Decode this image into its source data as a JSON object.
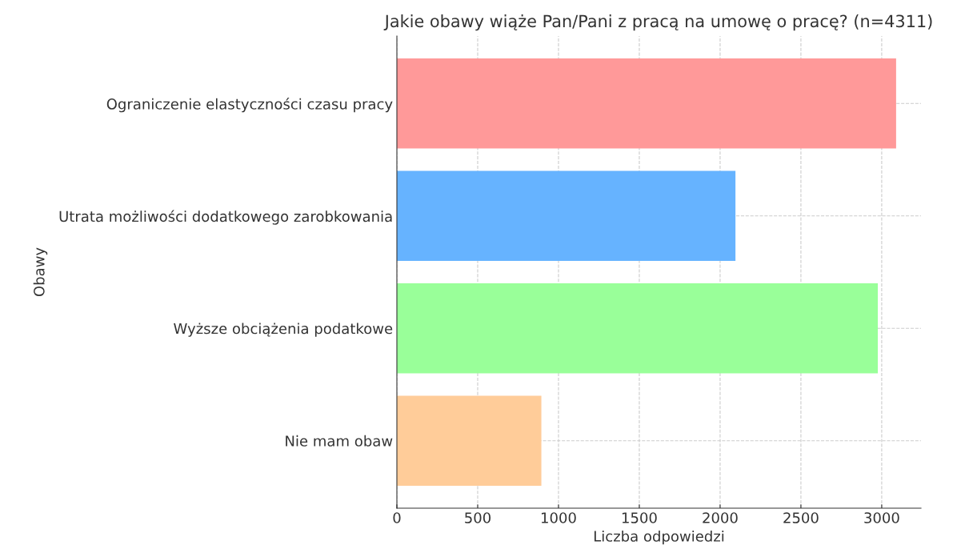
{
  "chart_data": {
    "type": "bar",
    "orientation": "horizontal",
    "title": "Jakie obawy wiąże Pan/Pani z pracą na umowę o pracę? (n=4311)",
    "xlabel": "Liczba odpowiedzi",
    "ylabel": "Obawy",
    "categories": [
      "Ograniczenie elastyczności czasu pracy",
      "Utrata możliwości dodatkowego zarobkowania",
      "Wyższe obciążenia podatkowe",
      "Nie mam obaw"
    ],
    "values": [
      3089,
      2095,
      2976,
      894
    ],
    "colors": [
      "#ff9999",
      "#66b3ff",
      "#99ff99",
      "#ffcc99"
    ],
    "xlim": [
      0,
      3243
    ],
    "xticks": [
      0,
      500,
      1000,
      1500,
      2000,
      2500,
      3000
    ],
    "grid": true
  }
}
